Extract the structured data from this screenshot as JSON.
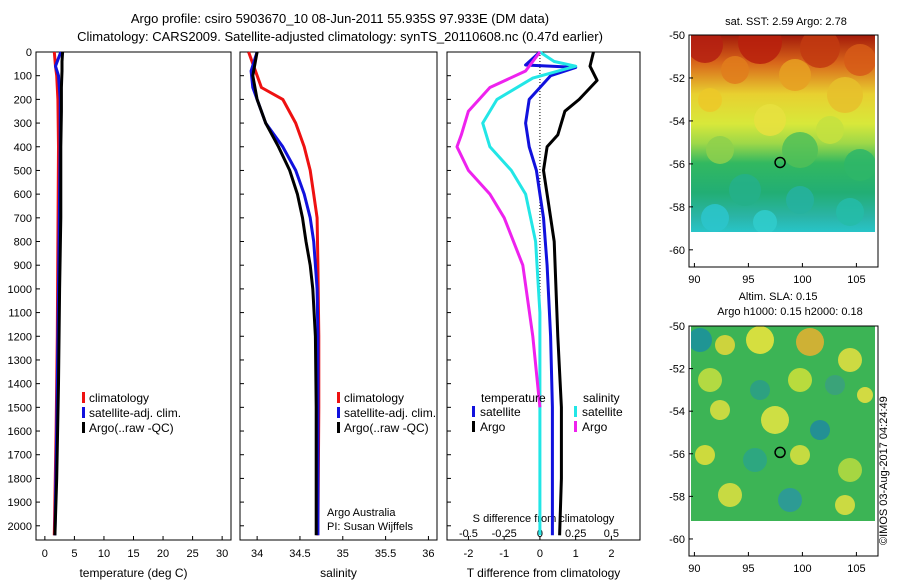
{
  "header": {
    "line1": "Argo profile: csiro 5903670_10 08-Jun-2011 55.935S 97.933E (DM data)",
    "line2": "Climatology: CARS2009. Satellite-adjusted climatology: synTS_20110608.nc (0.47d earlier)"
  },
  "footer_stamp": "©IMOS 03-Aug-2017 04:24:49",
  "colors": {
    "climatology": "#ee1111",
    "satellite": "#1111dd",
    "argo": "#000000",
    "sat_salinity": "#22e6e6",
    "argo_salinity": "#ee22ee"
  },
  "chart_data": [
    {
      "type": "line",
      "panel": "temperature",
      "xlabel": "temperature (deg C)",
      "ylabel": "",
      "xlim": [
        -1.5,
        31.5
      ],
      "ylim": [
        2060,
        0
      ],
      "xticks": [
        "0",
        "5",
        "10",
        "15",
        "20",
        "25",
        "30"
      ],
      "yticks": [
        "0",
        "100",
        "200",
        "300",
        "400",
        "500",
        "600",
        "700",
        "800",
        "900",
        "1000",
        "1100",
        "1200",
        "1300",
        "1400",
        "1500",
        "1600",
        "1700",
        "1800",
        "1900",
        "2000"
      ],
      "legend": [
        "climatology",
        "satellite-adj. clim.",
        "Argo(..raw -QC)"
      ],
      "series": [
        {
          "name": "climatology",
          "x": [
            1.6,
            1.8,
            2.0,
            2.2,
            2.3,
            2.2,
            2.1,
            1.9,
            1.6
          ],
          "y": [
            0,
            60,
            100,
            200,
            400,
            800,
            1200,
            1600,
            2040
          ]
        },
        {
          "name": "satellite-adj. clim.",
          "x": [
            2.7,
            1.8,
            2.3,
            2.6,
            2.6,
            2.4,
            2.2,
            2.0,
            1.7
          ],
          "y": [
            0,
            60,
            100,
            200,
            400,
            800,
            1200,
            1600,
            2040
          ]
        },
        {
          "name": "Argo(..raw -QC)",
          "x": [
            3.0,
            2.9,
            2.9,
            2.8,
            2.8,
            2.7,
            2.7,
            2.5,
            2.3,
            2.0,
            1.7
          ],
          "y": [
            0,
            40,
            80,
            150,
            250,
            400,
            700,
            1000,
            1400,
            1800,
            2040
          ]
        }
      ]
    },
    {
      "type": "line",
      "panel": "salinity",
      "xlabel": "salinity",
      "ylabel": "",
      "xlim": [
        33.8,
        36.1
      ],
      "ylim": [
        2060,
        0
      ],
      "xticks": [
        "34",
        "34.5",
        "35",
        "35.5",
        "36"
      ],
      "legend": [
        "climatology",
        "satellite-adj. clim.",
        "Argo(..raw -QC)"
      ],
      "annotations": [
        "Argo Australia",
        "PI: Susan Wijffels"
      ],
      "series": [
        {
          "name": "climatology",
          "x": [
            33.9,
            34.05,
            34.3,
            34.45,
            34.55,
            34.62,
            34.66,
            34.7,
            34.71,
            34.72,
            34.72,
            34.71
          ],
          "y": [
            0,
            150,
            200,
            300,
            400,
            500,
            600,
            700,
            900,
            1200,
            1500,
            2040
          ]
        },
        {
          "name": "satellite-adj. clim.",
          "x": [
            34.0,
            33.93,
            33.95,
            34.1,
            34.3,
            34.45,
            34.55,
            34.62,
            34.66,
            34.7,
            34.71,
            34.71,
            34.71
          ],
          "y": [
            0,
            80,
            150,
            300,
            400,
            500,
            600,
            700,
            800,
            1000,
            1200,
            1500,
            2040
          ]
        },
        {
          "name": "Argo(..raw -QC)",
          "x": [
            34.0,
            33.95,
            34.0,
            34.1,
            34.25,
            34.38,
            34.47,
            34.53,
            34.57,
            34.62,
            34.65,
            34.68,
            34.69,
            34.69
          ],
          "y": [
            0,
            100,
            200,
            300,
            400,
            500,
            600,
            700,
            800,
            900,
            1000,
            1200,
            1500,
            2040
          ]
        }
      ]
    },
    {
      "type": "line",
      "panel": "differences",
      "xlabel": "T difference from climatology",
      "x2label": "S difference from climatology",
      "xlim": [
        -2.6,
        2.8
      ],
      "x2lim": [
        -0.65,
        0.7
      ],
      "ylim": [
        2060,
        0
      ],
      "xticks": [
        "-2",
        "-1",
        "0",
        "1",
        "2"
      ],
      "x2ticks": [
        "-0.5",
        "-0.25",
        "0",
        "0.25",
        "0.5"
      ],
      "legend_left_title": "temperature",
      "legend_right_title": "salinity",
      "legend": [
        "satellite",
        "Argo",
        "satellite",
        "Argo"
      ],
      "series": [
        {
          "name": "temperature satellite",
          "quantity": "T",
          "x": [
            0.0,
            -0.4,
            1.0,
            0.3,
            -0.3,
            -0.4,
            -0.3,
            -0.1,
            0.0,
            0.1,
            0.2,
            0.3,
            0.35,
            0.35,
            0.35
          ],
          "y": [
            0,
            55,
            65,
            100,
            200,
            300,
            400,
            500,
            600,
            700,
            900,
            1200,
            1500,
            1800,
            2040
          ]
        },
        {
          "name": "temperature Argo",
          "quantity": "T",
          "x": [
            1.5,
            1.4,
            1.6,
            1.1,
            0.7,
            0.5,
            0.2,
            0.1,
            0.2,
            0.4,
            0.5,
            0.6,
            0.6,
            0.55
          ],
          "y": [
            0,
            60,
            120,
            200,
            250,
            350,
            400,
            500,
            600,
            800,
            1200,
            1500,
            1800,
            2040
          ]
        },
        {
          "name": "salinity satellite",
          "quantity": "S",
          "x": [
            0.0,
            0.1,
            0.25,
            -0.05,
            -0.3,
            -0.4,
            -0.35,
            -0.2,
            -0.1,
            -0.03,
            0.0,
            0.0,
            0.0
          ],
          "y": [
            0,
            40,
            60,
            110,
            200,
            300,
            400,
            500,
            600,
            800,
            1100,
            1500,
            2040
          ]
        },
        {
          "name": "salinity Argo",
          "quantity": "S",
          "x": [
            0.0,
            -0.1,
            -0.35,
            -0.5,
            -0.55,
            -0.58,
            -0.5,
            -0.35,
            -0.25,
            -0.12,
            -0.05,
            0.0
          ],
          "y": [
            0,
            80,
            150,
            250,
            350,
            400,
            500,
            600,
            700,
            900,
            1200,
            1500
          ]
        }
      ]
    },
    {
      "type": "heatmap",
      "panel": "sat-sst",
      "title": "sat. SST: 2.59 Argo: 2.78",
      "xlim": [
        89.5,
        107
      ],
      "ylim": [
        -60.8,
        -50
      ],
      "xticks": [
        "90",
        "95",
        "100",
        "105"
      ],
      "yticks": [
        "-50",
        "-52",
        "-54",
        "-56",
        "-58",
        "-60"
      ],
      "marker": {
        "lon": 97.933,
        "lat": -55.935
      }
    },
    {
      "type": "heatmap",
      "panel": "altim-sla",
      "title": "Altim. SLA: 0.15",
      "subtitle": "Argo h1000: 0.15 h2000: 0.18",
      "xlim": [
        89.5,
        107
      ],
      "ylim": [
        -60.8,
        -50
      ],
      "xticks": [
        "90",
        "95",
        "100",
        "105"
      ],
      "yticks": [
        "-50",
        "-52",
        "-54",
        "-56",
        "-58",
        "-60"
      ],
      "marker": {
        "lon": 97.933,
        "lat": -55.935
      }
    }
  ]
}
